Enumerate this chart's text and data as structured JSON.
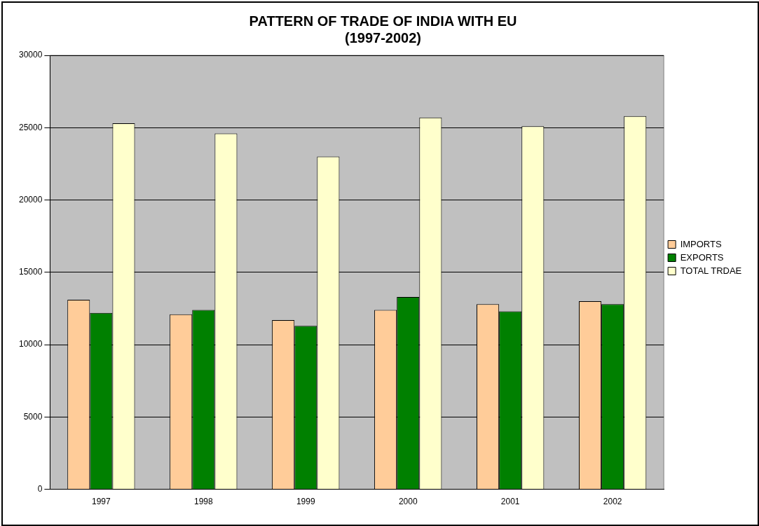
{
  "chart_data": {
    "type": "bar",
    "title": "PATTERN OF TRADE OF INDIA WITH EU",
    "subtitle": "(1997-2002)",
    "categories": [
      "1997",
      "1998",
      "1999",
      "2000",
      "2001",
      "2002"
    ],
    "series": [
      {
        "name": "IMPORTS",
        "color": "#ffcc99",
        "values": [
          13100,
          12100,
          11700,
          12400,
          12800,
          13000
        ]
      },
      {
        "name": "EXPORTS",
        "color": "#008000",
        "values": [
          12200,
          12400,
          11300,
          13300,
          12300,
          12800
        ]
      },
      {
        "name": "TOTAL TRDAE",
        "color": "#ffffcc",
        "values": [
          25300,
          24600,
          23000,
          25700,
          25100,
          25800
        ]
      }
    ],
    "ylim": [
      0,
      30000
    ],
    "yticks": [
      0,
      5000,
      10000,
      15000,
      20000,
      25000,
      30000
    ],
    "grid": "y",
    "legend": "right"
  }
}
